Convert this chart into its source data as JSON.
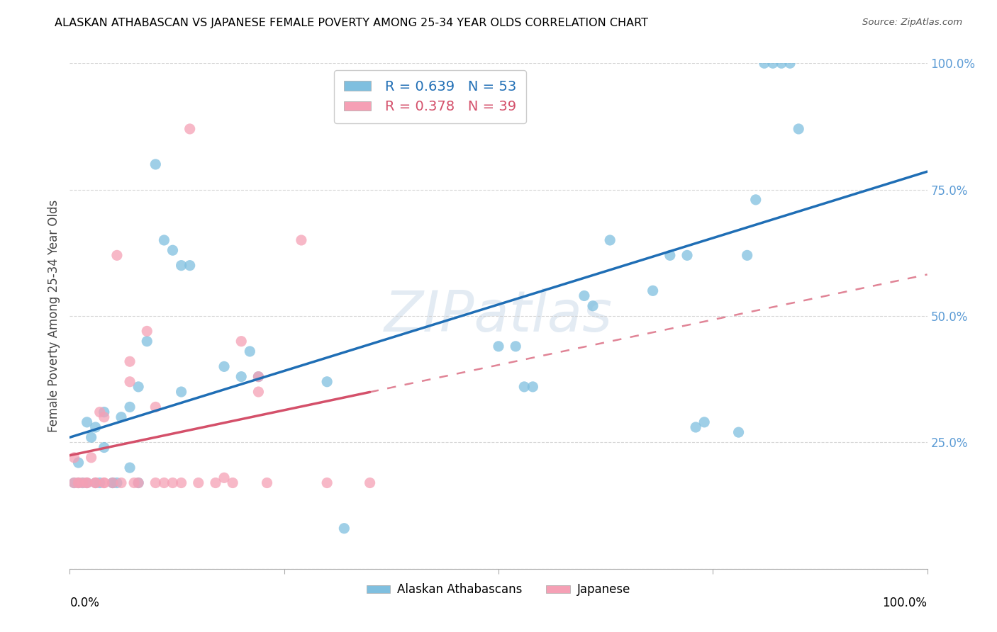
{
  "title": "ALASKAN ATHABASCAN VS JAPANESE FEMALE POVERTY AMONG 25-34 YEAR OLDS CORRELATION CHART",
  "source": "Source: ZipAtlas.com",
  "ylabel": "Female Poverty Among 25-34 Year Olds",
  "xlim": [
    0,
    1
  ],
  "ylim": [
    0,
    1
  ],
  "yticks": [
    0.0,
    0.25,
    0.5,
    0.75,
    1.0
  ],
  "ytick_labels": [
    "",
    "25.0%",
    "50.0%",
    "75.0%",
    "100.0%"
  ],
  "background_color": "#ffffff",
  "watermark": "ZIPatlas",
  "blue_color": "#7fbfdf",
  "pink_color": "#f5a0b5",
  "blue_line_color": "#1f6eb5",
  "pink_line_color": "#d4506a",
  "legend_blue_R": "0.639",
  "legend_blue_N": "53",
  "legend_pink_R": "0.378",
  "legend_pink_N": "39",
  "blue_scatter_x": [
    0.005,
    0.01,
    0.01,
    0.015,
    0.02,
    0.02,
    0.025,
    0.03,
    0.03,
    0.035,
    0.04,
    0.04,
    0.05,
    0.05,
    0.055,
    0.06,
    0.07,
    0.07,
    0.08,
    0.08,
    0.09,
    0.1,
    0.11,
    0.12,
    0.13,
    0.13,
    0.14,
    0.18,
    0.2,
    0.21,
    0.22,
    0.3,
    0.32,
    0.5,
    0.52,
    0.53,
    0.54,
    0.6,
    0.61,
    0.63,
    0.68,
    0.7,
    0.72,
    0.73,
    0.74,
    0.78,
    0.79,
    0.8,
    0.81,
    0.82,
    0.83,
    0.84,
    0.85
  ],
  "blue_scatter_y": [
    0.17,
    0.17,
    0.21,
    0.17,
    0.29,
    0.17,
    0.26,
    0.17,
    0.28,
    0.17,
    0.24,
    0.31,
    0.17,
    0.17,
    0.17,
    0.3,
    0.2,
    0.32,
    0.17,
    0.36,
    0.45,
    0.8,
    0.65,
    0.63,
    0.35,
    0.6,
    0.6,
    0.4,
    0.38,
    0.43,
    0.38,
    0.37,
    0.08,
    0.44,
    0.44,
    0.36,
    0.36,
    0.54,
    0.52,
    0.65,
    0.55,
    0.62,
    0.62,
    0.28,
    0.29,
    0.27,
    0.62,
    0.73,
    1.0,
    1.0,
    1.0,
    1.0,
    0.87
  ],
  "pink_scatter_x": [
    0.005,
    0.005,
    0.01,
    0.01,
    0.015,
    0.02,
    0.02,
    0.025,
    0.03,
    0.03,
    0.035,
    0.04,
    0.04,
    0.04,
    0.05,
    0.055,
    0.06,
    0.07,
    0.07,
    0.075,
    0.08,
    0.09,
    0.1,
    0.1,
    0.11,
    0.12,
    0.13,
    0.14,
    0.15,
    0.17,
    0.18,
    0.19,
    0.2,
    0.22,
    0.22,
    0.23,
    0.27,
    0.3,
    0.35
  ],
  "pink_scatter_y": [
    0.17,
    0.22,
    0.17,
    0.17,
    0.17,
    0.17,
    0.17,
    0.22,
    0.17,
    0.17,
    0.31,
    0.17,
    0.3,
    0.17,
    0.17,
    0.62,
    0.17,
    0.37,
    0.41,
    0.17,
    0.17,
    0.47,
    0.17,
    0.32,
    0.17,
    0.17,
    0.17,
    0.87,
    0.17,
    0.17,
    0.18,
    0.17,
    0.45,
    0.35,
    0.38,
    0.17,
    0.65,
    0.17,
    0.17
  ]
}
